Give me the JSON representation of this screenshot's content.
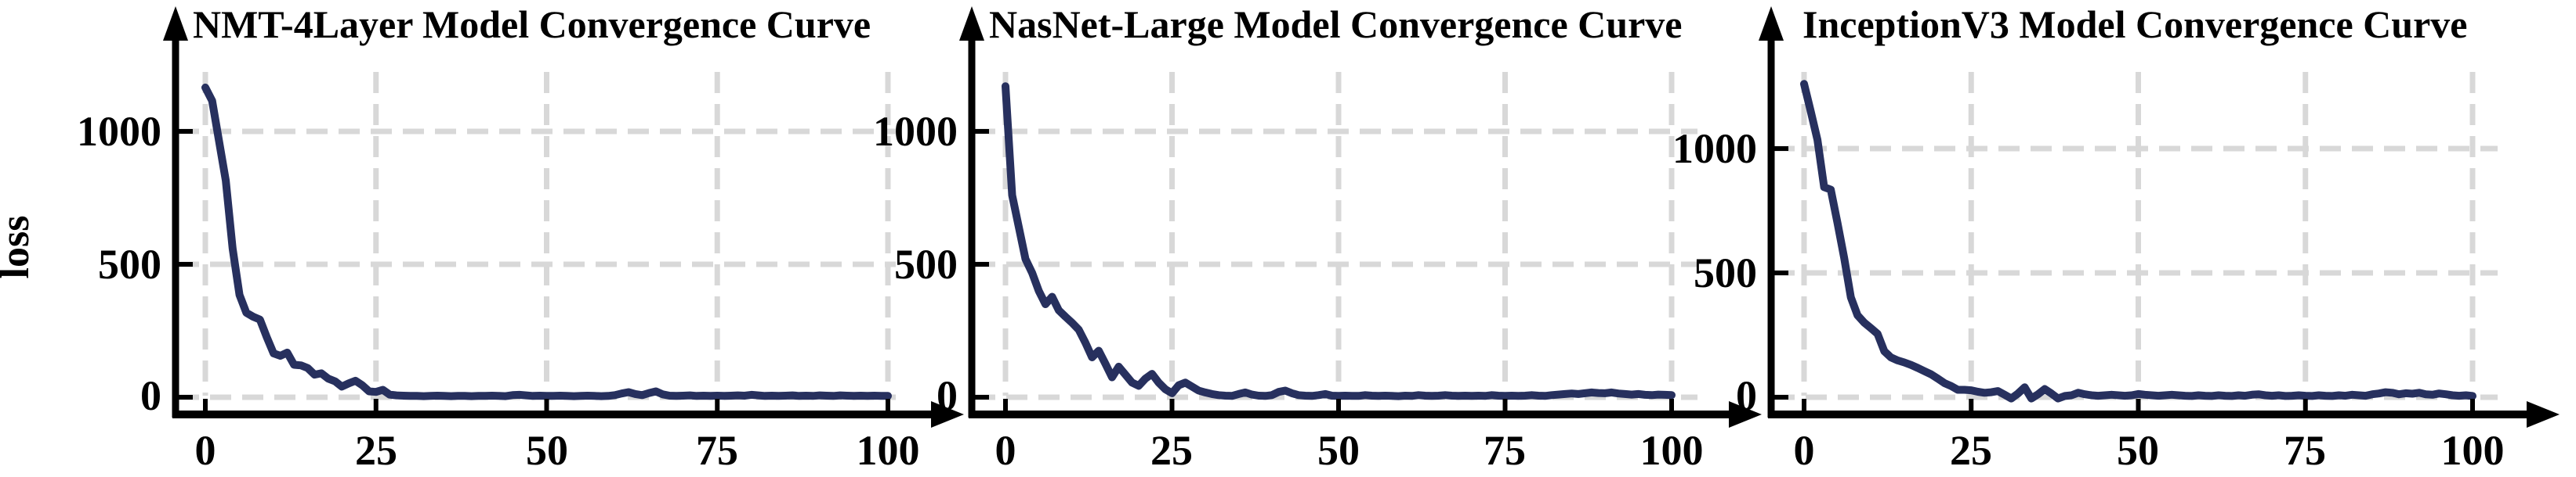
{
  "figure": {
    "background": "#ffffff",
    "axis_color": "#000000",
    "grid_color": "#d8d8d8",
    "line_color": "#27305e",
    "y_axis_label": "loss"
  },
  "chart_data": [
    {
      "type": "line",
      "title": "NMT-4Layer Model Convergence Curve",
      "xlabel": "",
      "ylabel": "loss",
      "xlim": [
        0,
        100
      ],
      "ylim": [
        0,
        1250
      ],
      "x_ticks": [
        0,
        25,
        50,
        75,
        100
      ],
      "y_ticks": [
        0,
        500,
        1000
      ],
      "grid": true,
      "legend": "none",
      "line_color": "#27305e",
      "x_step": 1,
      "values": [
        1165,
        1115,
        965,
        815,
        560,
        385,
        318,
        303,
        292,
        226,
        165,
        156,
        168,
        122,
        120,
        110,
        85,
        90,
        70,
        60,
        40,
        52,
        62,
        45,
        22,
        20,
        28,
        10,
        7,
        6,
        5,
        5,
        4,
        5,
        6,
        5,
        4,
        5,
        5,
        4,
        5,
        5,
        6,
        5,
        4,
        8,
        9,
        7,
        5,
        6,
        5,
        5,
        6,
        5,
        4,
        5,
        6,
        5,
        4,
        5,
        8,
        14,
        19,
        12,
        8,
        16,
        22,
        11,
        6,
        5,
        6,
        7,
        5,
        6,
        5,
        6,
        5,
        6,
        7,
        6,
        9,
        7,
        5,
        6,
        5,
        6,
        7,
        5,
        6,
        5,
        7,
        6,
        5,
        7,
        6,
        5,
        6,
        5,
        6,
        5,
        5
      ]
    },
    {
      "type": "line",
      "title": "NasNet-Large Model Convergence Curve",
      "xlabel": "",
      "ylabel": "loss",
      "xlim": [
        0,
        100
      ],
      "ylim": [
        0,
        1250
      ],
      "x_ticks": [
        0,
        25,
        50,
        75,
        100
      ],
      "y_ticks": [
        0,
        500,
        1000
      ],
      "grid": true,
      "legend": "none",
      "line_color": "#27305e",
      "x_step": 1,
      "values": [
        1170,
        760,
        640,
        520,
        468,
        400,
        350,
        378,
        327,
        303,
        280,
        254,
        205,
        150,
        175,
        126,
        75,
        115,
        85,
        55,
        43,
        70,
        88,
        55,
        30,
        15,
        45,
        55,
        40,
        25,
        18,
        12,
        8,
        6,
        5,
        12,
        18,
        10,
        6,
        5,
        8,
        20,
        25,
        15,
        8,
        6,
        5,
        8,
        12,
        6,
        5,
        6,
        5,
        5,
        8,
        6,
        5,
        6,
        5,
        4,
        6,
        5,
        8,
        6,
        5,
        6,
        8,
        6,
        5,
        6,
        5,
        6,
        5,
        8,
        6,
        5,
        6,
        5,
        6,
        8,
        6,
        5,
        8,
        10,
        12,
        14,
        12,
        15,
        18,
        16,
        15,
        18,
        14,
        12,
        10,
        12,
        9,
        8,
        10,
        9,
        8
      ]
    },
    {
      "type": "line",
      "title": "InceptionV3 Model Convergence Curve",
      "xlabel": "",
      "ylabel": "loss",
      "xlim": [
        0,
        100
      ],
      "ylim": [
        -20,
        1330
      ],
      "x_ticks": [
        0,
        25,
        50,
        75,
        100
      ],
      "y_ticks": [
        0,
        500,
        1000
      ],
      "grid": true,
      "legend": "none",
      "line_color": "#27305e",
      "x_step": 1,
      "values": [
        1260,
        1150,
        1035,
        845,
        835,
        700,
        560,
        402,
        330,
        300,
        278,
        255,
        185,
        160,
        148,
        140,
        130,
        118,
        105,
        92,
        75,
        57,
        45,
        30,
        30,
        28,
        22,
        18,
        20,
        25,
        10,
        -5,
        15,
        40,
        -5,
        12,
        33,
        15,
        -5,
        5,
        8,
        18,
        12,
        8,
        6,
        8,
        10,
        8,
        6,
        8,
        13,
        10,
        8,
        6,
        8,
        10,
        8,
        6,
        5,
        8,
        6,
        5,
        8,
        6,
        5,
        8,
        6,
        10,
        12,
        8,
        6,
        8,
        5,
        6,
        8,
        6,
        5,
        8,
        6,
        5,
        8,
        6,
        10,
        8,
        6,
        12,
        15,
        20,
        18,
        12,
        16,
        14,
        18,
        12,
        10,
        15,
        12,
        8,
        6,
        8,
        5
      ]
    }
  ]
}
